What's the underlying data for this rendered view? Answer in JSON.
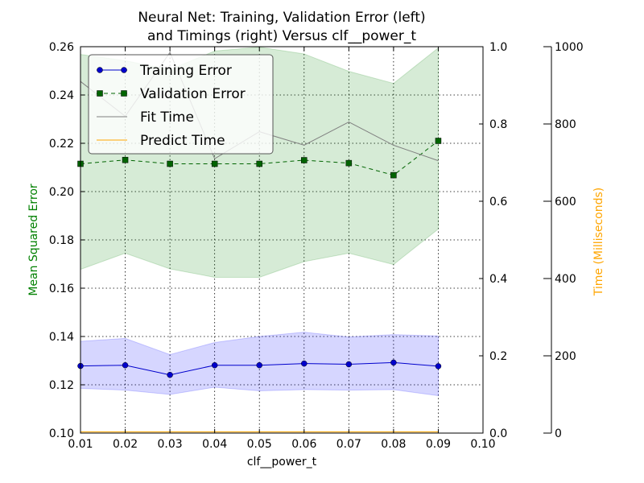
{
  "chart_data": {
    "type": "line",
    "title_line1": "Neural Net: Training, Validation Error (left)",
    "title_line2": "and Timings (right) Versus clf__power_t",
    "xlabel": "clf__power_t",
    "ylabel_left": "Mean Squared Error",
    "ylabel_right": "Time (Milliseconds)",
    "xlim": [
      0.01,
      0.1
    ],
    "ylim_left": [
      0.1,
      0.26
    ],
    "ylim_right_fraction": [
      0.0,
      1.0
    ],
    "ylim_right_ms": [
      0,
      1000
    ],
    "grid": true,
    "legend_position": "top-left",
    "x": [
      0.01,
      0.02,
      0.03,
      0.04,
      0.05,
      0.06,
      0.07,
      0.08,
      0.09
    ],
    "x_tick_labels": [
      "0.01",
      "0.02",
      "0.03",
      "0.04",
      "0.05",
      "0.06",
      "0.07",
      "0.08",
      "0.09",
      "0.10"
    ],
    "y_left_tick_labels": [
      "0.10",
      "0.12",
      "0.14",
      "0.16",
      "0.18",
      "0.20",
      "0.22",
      "0.24",
      "0.26"
    ],
    "y_right_fraction_tick_labels": [
      "0.0",
      "0.2",
      "0.4",
      "0.6",
      "0.8",
      "1.0"
    ],
    "y_right_ms_tick_labels": [
      "0",
      "200",
      "400",
      "600",
      "800",
      "1000"
    ],
    "series": [
      {
        "name": "Training Error",
        "axis": "left",
        "color": "#0000cc",
        "marker": "circle",
        "linestyle": "solid",
        "values": [
          0.1278,
          0.1281,
          0.1241,
          0.1281,
          0.1281,
          0.1288,
          0.1285,
          0.1292,
          0.1277
        ],
        "band_lower": [
          0.1185,
          0.1178,
          0.116,
          0.119,
          0.1175,
          0.118,
          0.1178,
          0.118,
          0.1155
        ],
        "band_upper": [
          0.138,
          0.1392,
          0.1325,
          0.1375,
          0.14,
          0.1418,
          0.1398,
          0.1408,
          0.1402
        ],
        "band_color": "#0000ff"
      },
      {
        "name": "Validation Error",
        "axis": "left",
        "color": "#006400",
        "marker": "square",
        "linestyle": "dashed",
        "values": [
          0.2115,
          0.2131,
          0.2115,
          0.2115,
          0.2115,
          0.213,
          0.2118,
          0.2068,
          0.221
        ],
        "band_lower": [
          0.1678,
          0.1745,
          0.168,
          0.1645,
          0.1645,
          0.171,
          0.1745,
          0.1698,
          0.1845
        ],
        "band_upper": [
          0.2568,
          0.2542,
          0.2505,
          0.2582,
          0.2598,
          0.257,
          0.2498,
          0.2448,
          0.2595
        ],
        "band_color": "#008000"
      },
      {
        "name": "Fit Time",
        "axis": "right",
        "color": "#808080",
        "marker": "none",
        "linestyle": "solid",
        "values_ms": [
          910,
          820,
          985,
          710,
          780,
          745,
          805,
          745,
          705
        ]
      },
      {
        "name": "Predict Time",
        "axis": "right",
        "color": "#ffa500",
        "marker": "none",
        "linestyle": "solid",
        "values_ms": [
          3,
          3,
          3,
          3,
          3,
          3,
          3,
          3,
          3
        ]
      }
    ],
    "label_colors": {
      "ylabel_left": "#008000",
      "ylabel_right": "#ffa500"
    }
  }
}
